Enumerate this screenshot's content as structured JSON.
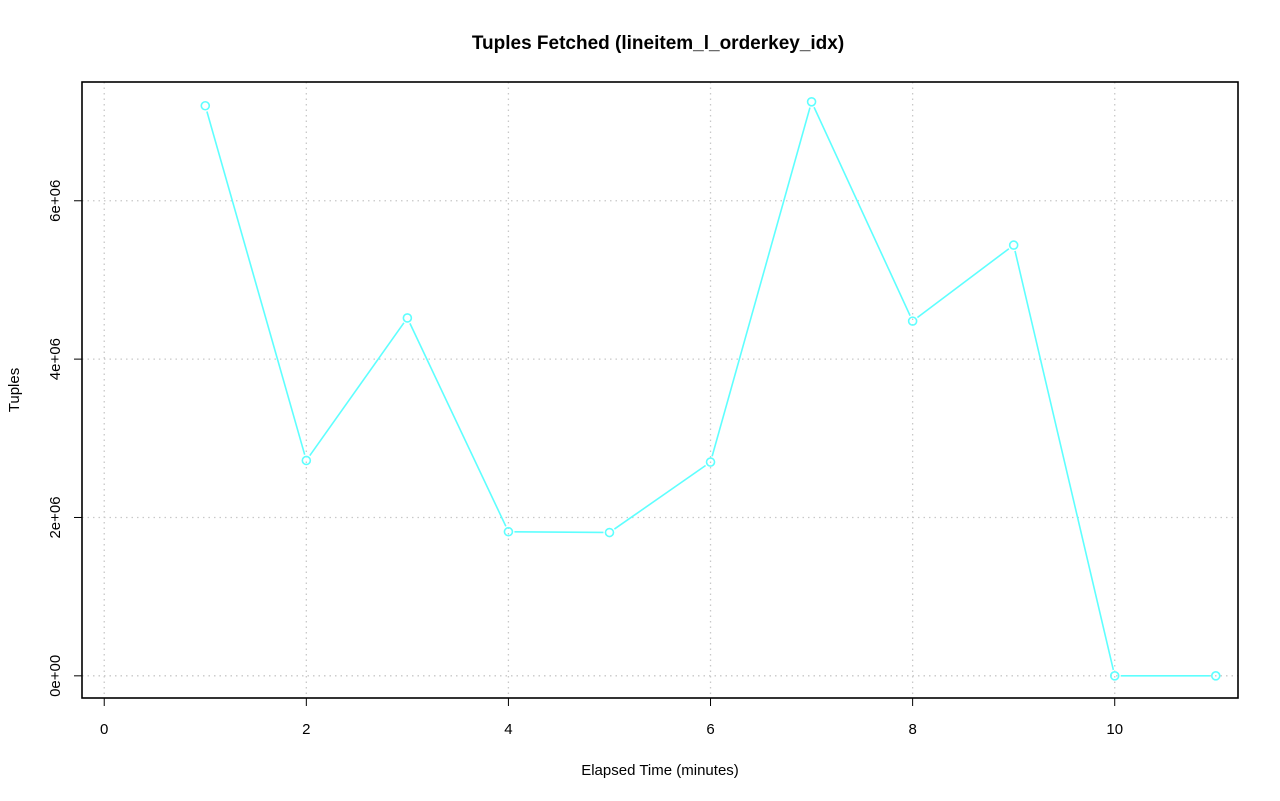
{
  "chart_data": {
    "type": "line",
    "title": "Tuples Fetched (lineitem_l_orderkey_idx)",
    "xlabel": "Elapsed Time (minutes)",
    "ylabel": "Tuples",
    "xlim": [
      -0.22,
      11.22
    ],
    "ylim": [
      -280000,
      7500000
    ],
    "xticks": [
      0,
      2,
      4,
      6,
      8,
      10
    ],
    "xtick_labels": [
      "0",
      "2",
      "4",
      "6",
      "8",
      "10"
    ],
    "yticks": [
      0,
      2000000,
      4000000,
      6000000
    ],
    "ytick_labels": [
      "0e+00",
      "2e+06",
      "4e+06",
      "6e+06"
    ],
    "grid": true,
    "series": [
      {
        "color": "#5effff",
        "marker": "open-circle",
        "x": [
          1,
          2,
          3,
          4,
          5,
          6,
          7,
          8,
          9,
          10,
          11
        ],
        "values": [
          7200000,
          2720000,
          4520000,
          1820000,
          1810000,
          2700000,
          7250000,
          4480000,
          5440000,
          0,
          0
        ]
      }
    ]
  }
}
